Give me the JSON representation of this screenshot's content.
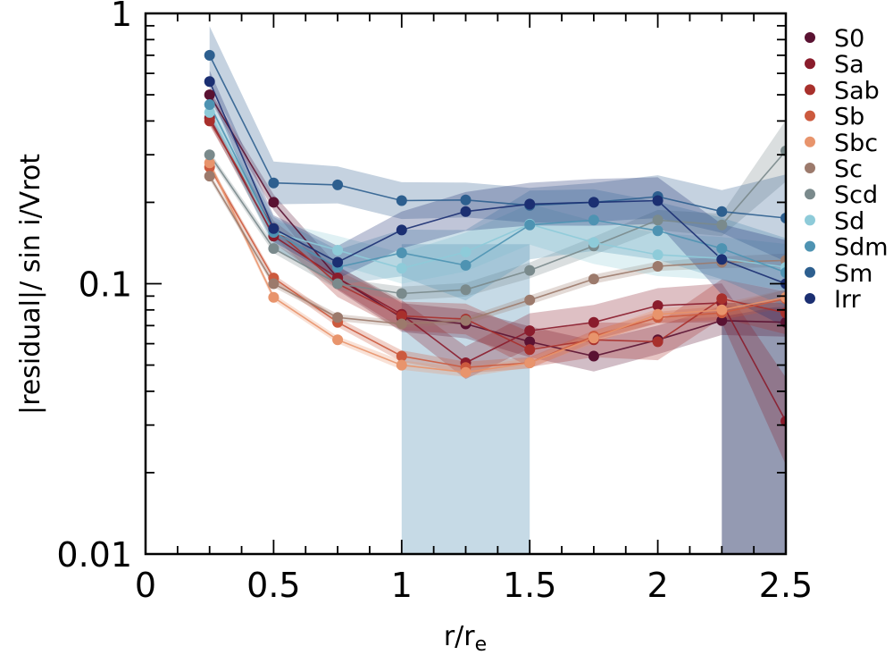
{
  "chart_data": {
    "type": "line",
    "xlabel": "r/r",
    "xlabel_sub": "e",
    "ylabel": "|residual|/ sin i/Vrot",
    "xlim": [
      0,
      2.5
    ],
    "ylim": [
      0.01,
      1
    ],
    "yscale": "log",
    "x_ticks": [
      "0",
      "0.5",
      "1",
      "1.5",
      "2",
      "2.5"
    ],
    "x_tick_values": [
      0,
      0.5,
      1,
      1.5,
      2,
      2.5
    ],
    "y_ticks": [
      "0.01",
      "0.1",
      "1"
    ],
    "y_tick_values": [
      0.01,
      0.1,
      1
    ],
    "legend_position": "right",
    "x": [
      0.25,
      0.5,
      0.75,
      1.0,
      1.25,
      1.5,
      1.75,
      2.0,
      2.25,
      2.5
    ],
    "series": [
      {
        "name": "S0",
        "color": "#5a1232",
        "values": [
          0.5,
          0.2,
          0.105,
          0.075,
          0.071,
          0.061,
          0.054,
          0.062,
          0.073,
          0.072
        ],
        "band": [
          0.04,
          0.07,
          0.11,
          0.13,
          0.13,
          0.14,
          0.14,
          0.13,
          0.13,
          0.13
        ]
      },
      {
        "name": "Sa",
        "color": "#8a1c2c",
        "values": [
          0.41,
          0.15,
          0.105,
          0.077,
          0.051,
          0.067,
          0.072,
          0.083,
          0.085,
          0.031
        ],
        "band": [
          0.05,
          0.06,
          0.1,
          0.13,
          0.15,
          0.16,
          0.16,
          0.16,
          0.18,
          0.45
        ]
      },
      {
        "name": "Sab",
        "color": "#a8302c",
        "values": [
          0.4,
          0.16,
          0.1,
          0.076,
          0.074,
          0.057,
          0.062,
          0.061,
          0.088,
          0.078
        ],
        "band": [
          0.04,
          0.07,
          0.12,
          0.13,
          0.14,
          0.16,
          0.16,
          0.17,
          0.18,
          0.2
        ]
      },
      {
        "name": "Sb",
        "color": "#cc5a3e",
        "values": [
          0.27,
          0.105,
          0.072,
          0.054,
          0.049,
          0.051,
          0.064,
          0.075,
          0.078,
          0.088
        ],
        "band": [
          0.03,
          0.03,
          0.04,
          0.05,
          0.05,
          0.05,
          0.05,
          0.05,
          0.06,
          0.08
        ]
      },
      {
        "name": "Sbc",
        "color": "#e8946c",
        "values": [
          0.28,
          0.089,
          0.062,
          0.05,
          0.047,
          0.051,
          0.063,
          0.077,
          0.08,
          0.089
        ],
        "band": [
          0.03,
          0.03,
          0.03,
          0.04,
          0.04,
          0.04,
          0.05,
          0.05,
          0.06,
          0.07
        ]
      },
      {
        "name": "Sc",
        "color": "#9c7a6c",
        "values": [
          0.25,
          0.1,
          0.075,
          0.071,
          0.073,
          0.087,
          0.104,
          0.116,
          0.12,
          0.122
        ],
        "band": [
          0.03,
          0.03,
          0.03,
          0.03,
          0.03,
          0.04,
          0.04,
          0.04,
          0.05,
          0.06
        ]
      },
      {
        "name": "Scd",
        "color": "#7a8a8c",
        "values": [
          0.3,
          0.135,
          0.1,
          0.092,
          0.095,
          0.112,
          0.138,
          0.172,
          0.165,
          0.31
        ],
        "band": [
          0.03,
          0.04,
          0.05,
          0.06,
          0.06,
          0.07,
          0.08,
          0.09,
          0.1,
          0.3
        ]
      },
      {
        "name": "Sd",
        "color": "#8ecbd9",
        "values": [
          0.43,
          0.155,
          0.133,
          0.114,
          0.131,
          0.166,
          0.142,
          0.128,
          0.124,
          0.115
        ],
        "band": [
          0.08,
          0.1,
          0.13,
          0.14,
          0.18,
          0.19,
          0.2,
          0.2,
          0.2,
          0.22
        ]
      },
      {
        "name": "Sdm",
        "color": "#4e93b2",
        "values": [
          0.46,
          0.155,
          0.115,
          0.13,
          0.117,
          0.165,
          0.172,
          0.157,
          0.135,
          0.11
        ],
        "band": [
          0.1,
          0.14,
          0.16,
          0.22,
          0.35,
          0.34,
          0.3,
          0.28,
          0.3,
          0.34
        ]
      },
      {
        "name": "Sm",
        "color": "#2d5f8f",
        "values": [
          0.7,
          0.236,
          0.232,
          0.203,
          0.204,
          0.195,
          0.2,
          0.21,
          0.185,
          0.175
        ],
        "band": [
          0.28,
          0.2,
          0.17,
          0.17,
          0.16,
          0.16,
          0.18,
          0.2,
          0.2,
          0.45
        ]
      },
      {
        "name": "Irr",
        "color": "#1b2f72",
        "values": [
          0.56,
          0.16,
          0.12,
          0.158,
          0.185,
          0.197,
          0.2,
          0.203,
          0.123,
          0.1
        ],
        "band": [
          0.1,
          0.12,
          0.15,
          0.17,
          0.18,
          0.2,
          0.22,
          0.22,
          0.35,
          0.45
        ]
      }
    ],
    "shaded_regions": [
      {
        "x": [
          1.0,
          1.5
        ],
        "y": [
          0.01,
          0.14
        ],
        "color": "#a8c6d8"
      },
      {
        "x": [
          2.25,
          2.5
        ],
        "y": [
          0.01,
          0.085
        ],
        "color": "#5a6488"
      }
    ]
  }
}
